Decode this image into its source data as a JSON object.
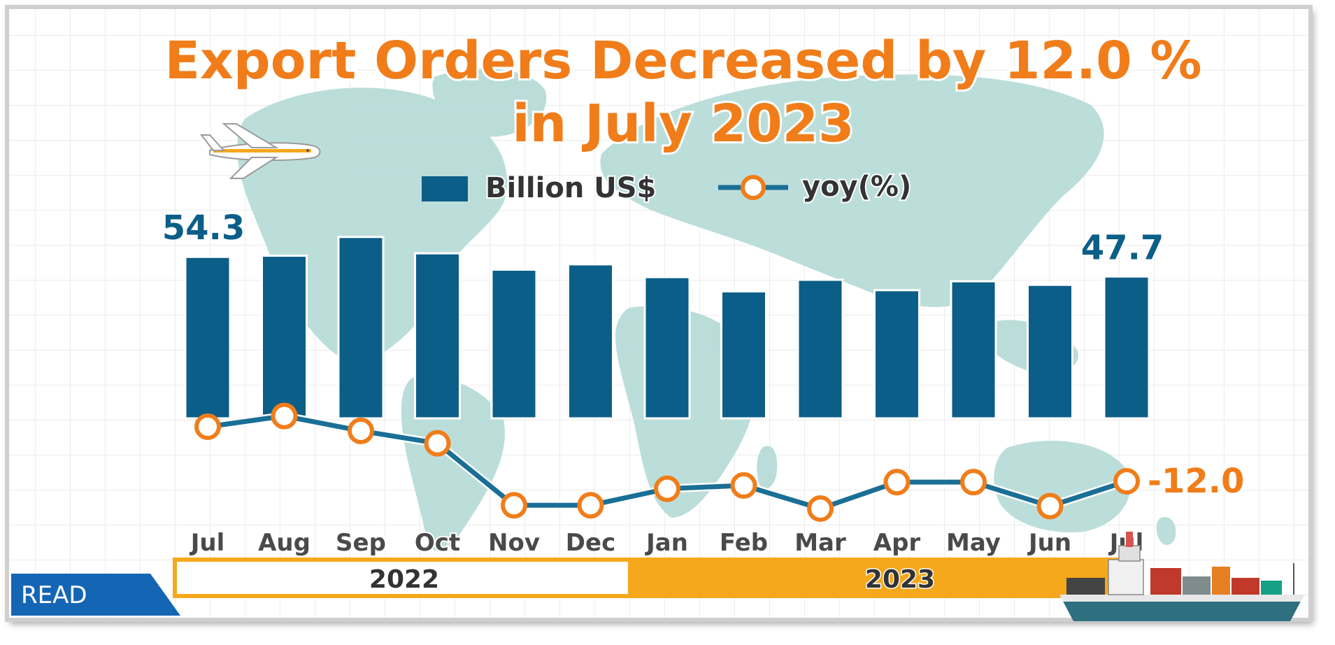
{
  "read_badge": "READ",
  "colors": {
    "bar": "#0b5e87",
    "line": "#1a6f96",
    "marker": "#f07d1a",
    "title": "#f07d1a",
    "value_label": "#0b5e87",
    "yoy_label": "#f07d1a",
    "year_bar_2023": "#f5a81c",
    "map": "#b8dcd9",
    "grid": "#e6e6e6"
  },
  "chart_data": {
    "type": "bar",
    "title": "Export Orders Decreased by 12.0 % in July 2023",
    "title_lines": [
      "Export Orders Decreased by 12.0 %",
      "in July 2023"
    ],
    "categories": [
      "Jul",
      "Aug",
      "Sep",
      "Oct",
      "Nov",
      "Dec",
      "Jan",
      "Feb",
      "Mar",
      "Apr",
      "May",
      "Jun",
      "Jul"
    ],
    "year_groups": [
      {
        "label": "2022",
        "months": [
          "Jul",
          "Aug",
          "Sep",
          "Oct",
          "Nov",
          "Dec"
        ]
      },
      {
        "label": "2023",
        "months": [
          "Jan",
          "Feb",
          "Mar",
          "Apr",
          "May",
          "Jun",
          "Jul"
        ]
      }
    ],
    "series": [
      {
        "name": "Billion US$",
        "type": "bar",
        "values": [
          54.3,
          54.7,
          61.0,
          55.5,
          50.0,
          51.8,
          47.5,
          42.7,
          46.6,
          43.1,
          46.1,
          44.9,
          47.7
        ]
      },
      {
        "name": "yoy(%)",
        "type": "line",
        "values": [
          -5.4,
          -4.1,
          -5.9,
          -7.4,
          -14.9,
          -14.9,
          -12.9,
          -12.5,
          -15.3,
          -12.1,
          -12.1,
          -15.0,
          -12.0
        ]
      }
    ],
    "data_labels": [
      {
        "series": "Billion US$",
        "index": 0,
        "text": "54.3"
      },
      {
        "series": "Billion US$",
        "index": 12,
        "text": "47.7"
      },
      {
        "series": "yoy(%)",
        "index": 12,
        "text": "-12.0"
      }
    ],
    "legend": {
      "position": "top-center",
      "items": [
        "Billion US$",
        "yoy(%)"
      ]
    },
    "ylim_bar": [
      0,
      64
    ],
    "ylim_line": [
      -17,
      -3
    ],
    "grid": true
  }
}
